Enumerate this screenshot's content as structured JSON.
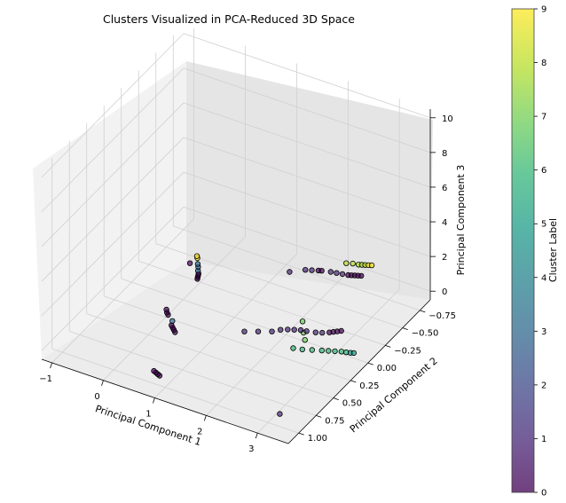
{
  "chart_data": {
    "type": "scatter",
    "projection": "3d",
    "title": "Clusters Visualized in PCA-Reduced 3D Space",
    "xlabel": "Principal Component 1",
    "ylabel": "Principal Component 2",
    "zlabel": "Principal Component 3",
    "xlim": [
      -1.2,
      3.6
    ],
    "ylim": [
      -0.9,
      1.15
    ],
    "zlim": [
      -0.5,
      10.5
    ],
    "xticks": [
      "−1",
      "0",
      "1",
      "2",
      "3"
    ],
    "xtick_values": [
      -1,
      0,
      1,
      2,
      3
    ],
    "yticks": [
      "−0.75",
      "−0.50",
      "−0.25",
      "0.00",
      "0.25",
      "0.50",
      "0.75",
      "1.00"
    ],
    "ytick_values": [
      -0.75,
      -0.5,
      -0.25,
      0,
      0.25,
      0.5,
      0.75,
      1.0
    ],
    "zticks": [
      "0",
      "2",
      "4",
      "6",
      "8",
      "10"
    ],
    "ztick_values": [
      0,
      2,
      4,
      6,
      8,
      10
    ],
    "grid": true,
    "colormap": "viridis",
    "alpha": 0.7,
    "marker_edgecolor": "#000000",
    "colorbar": {
      "label": "Cluster Label",
      "min": 0,
      "max": 9,
      "ticks": [
        "0",
        "1",
        "2",
        "3",
        "4",
        "5",
        "6",
        "7",
        "8",
        "9"
      ]
    },
    "points": [
      {
        "x": -0.2,
        "y": -0.35,
        "z": 0.4,
        "c": 9
      },
      {
        "x": -0.15,
        "y": -0.32,
        "z": 0.45,
        "c": 9
      },
      {
        "x": -0.05,
        "y": -0.25,
        "z": 0.5,
        "c": 3
      },
      {
        "x": 0.0,
        "y": -0.22,
        "z": 0.5,
        "c": 3
      },
      {
        "x": 0.05,
        "y": -0.18,
        "z": 0.5,
        "c": 3
      },
      {
        "x": 0.1,
        "y": -0.15,
        "z": 0.5,
        "c": 0
      },
      {
        "x": 0.12,
        "y": -0.13,
        "z": 0.5,
        "c": 0
      },
      {
        "x": 0.14,
        "y": -0.11,
        "z": 0.5,
        "c": 0
      },
      {
        "x": 0.16,
        "y": -0.09,
        "z": 0.5,
        "c": 0
      },
      {
        "x": 0.0,
        "y": -0.1,
        "z": 1.2,
        "c": 0
      },
      {
        "x": 0.15,
        "y": 0.35,
        "z": 0.5,
        "c": 0
      },
      {
        "x": 0.2,
        "y": 0.38,
        "z": 0.5,
        "c": 0
      },
      {
        "x": 0.25,
        "y": 0.4,
        "z": 0.5,
        "c": 0
      },
      {
        "x": 0.4,
        "y": 0.45,
        "z": 0.5,
        "c": 3
      },
      {
        "x": 0.45,
        "y": 0.5,
        "z": 0.5,
        "c": 0
      },
      {
        "x": 0.5,
        "y": 0.52,
        "z": 0.5,
        "c": 0
      },
      {
        "x": 0.55,
        "y": 0.54,
        "z": 0.5,
        "c": 0
      },
      {
        "x": 0.6,
        "y": 0.56,
        "z": 0.5,
        "c": 0
      },
      {
        "x": 0.85,
        "y": 1.05,
        "z": 0.5,
        "c": 0
      },
      {
        "x": 0.9,
        "y": 1.06,
        "z": 0.5,
        "c": 0
      },
      {
        "x": 0.95,
        "y": 1.07,
        "z": 0.5,
        "c": 0
      },
      {
        "x": 1.0,
        "y": 1.08,
        "z": 0.5,
        "c": 0
      },
      {
        "x": 1.6,
        "y": 0.3,
        "z": 0.5,
        "c": 1
      },
      {
        "x": 1.8,
        "y": 0.25,
        "z": 0.5,
        "c": 1
      },
      {
        "x": 2.0,
        "y": 0.2,
        "z": 0.5,
        "c": 1
      },
      {
        "x": 2.1,
        "y": 0.15,
        "z": 0.5,
        "c": 1
      },
      {
        "x": 2.2,
        "y": 0.12,
        "z": 0.5,
        "c": 1
      },
      {
        "x": 2.3,
        "y": 0.1,
        "z": 0.5,
        "c": 1
      },
      {
        "x": 2.4,
        "y": 0.08,
        "z": 0.5,
        "c": 1
      },
      {
        "x": 2.5,
        "y": 0.07,
        "z": 0.5,
        "c": 1
      },
      {
        "x": 2.65,
        "y": 0.05,
        "z": 0.5,
        "c": 1
      },
      {
        "x": 2.75,
        "y": 0.03,
        "z": 0.5,
        "c": 1
      },
      {
        "x": 2.85,
        "y": 0.0,
        "z": 0.5,
        "c": 0
      },
      {
        "x": 2.9,
        "y": -0.02,
        "z": 0.5,
        "c": 0
      },
      {
        "x": 2.95,
        "y": -0.04,
        "z": 0.5,
        "c": 0
      },
      {
        "x": 3.0,
        "y": -0.06,
        "z": 0.5,
        "c": 0
      },
      {
        "x": 2.55,
        "y": 0.3,
        "z": 0.5,
        "c": 6
      },
      {
        "x": 2.7,
        "y": 0.28,
        "z": 0.5,
        "c": 6
      },
      {
        "x": 2.85,
        "y": 0.25,
        "z": 0.5,
        "c": 6
      },
      {
        "x": 3.0,
        "y": 0.22,
        "z": 0.5,
        "c": 6
      },
      {
        "x": 3.1,
        "y": 0.2,
        "z": 0.5,
        "c": 6
      },
      {
        "x": 3.2,
        "y": 0.18,
        "z": 0.5,
        "c": 6
      },
      {
        "x": 3.3,
        "y": 0.16,
        "z": 0.5,
        "c": 6
      },
      {
        "x": 3.38,
        "y": 0.15,
        "z": 0.5,
        "c": 6
      },
      {
        "x": 3.45,
        "y": 0.14,
        "z": 0.5,
        "c": 5
      },
      {
        "x": 3.5,
        "y": 0.13,
        "z": 0.5,
        "c": 5
      },
      {
        "x": 2.8,
        "y": 0.35,
        "z": 2.5,
        "c": 7
      },
      {
        "x": 2.75,
        "y": 0.3,
        "z": 1.6,
        "c": 7
      },
      {
        "x": 2.75,
        "y": 0.28,
        "z": 1.1,
        "c": 7
      },
      {
        "x": 3.3,
        "y": 1.05,
        "z": 0.5,
        "c": 1
      },
      {
        "x": 1.4,
        "y": -0.5,
        "z": 0.5,
        "c": 1
      },
      {
        "x": 1.6,
        "y": -0.58,
        "z": 0.5,
        "c": 1
      },
      {
        "x": 1.7,
        "y": -0.6,
        "z": 0.5,
        "c": 1
      },
      {
        "x": 1.8,
        "y": -0.62,
        "z": 0.5,
        "c": 0
      },
      {
        "x": 1.85,
        "y": -0.63,
        "z": 0.5,
        "c": 0
      },
      {
        "x": 2.0,
        "y": -0.65,
        "z": 0.5,
        "c": 1
      },
      {
        "x": 2.1,
        "y": -0.66,
        "z": 0.5,
        "c": 1
      },
      {
        "x": 2.2,
        "y": -0.67,
        "z": 0.5,
        "c": 1
      },
      {
        "x": 2.3,
        "y": -0.68,
        "z": 0.5,
        "c": 0
      },
      {
        "x": 2.35,
        "y": -0.69,
        "z": 0.5,
        "c": 0
      },
      {
        "x": 2.4,
        "y": -0.7,
        "z": 0.5,
        "c": 0
      },
      {
        "x": 2.45,
        "y": -0.71,
        "z": 0.5,
        "c": 0
      },
      {
        "x": 2.5,
        "y": -0.72,
        "z": 0.5,
        "c": 0
      },
      {
        "x": 2.1,
        "y": -0.8,
        "z": 0.5,
        "c": 8
      },
      {
        "x": 2.2,
        "y": -0.82,
        "z": 0.5,
        "c": 8
      },
      {
        "x": 2.3,
        "y": -0.83,
        "z": 0.5,
        "c": 8
      },
      {
        "x": 2.35,
        "y": -0.84,
        "z": 0.5,
        "c": 8
      },
      {
        "x": 2.4,
        "y": -0.85,
        "z": 0.5,
        "c": 8
      },
      {
        "x": 2.45,
        "y": -0.86,
        "z": 0.5,
        "c": 9
      },
      {
        "x": 2.5,
        "y": -0.87,
        "z": 0.5,
        "c": 9
      }
    ]
  }
}
